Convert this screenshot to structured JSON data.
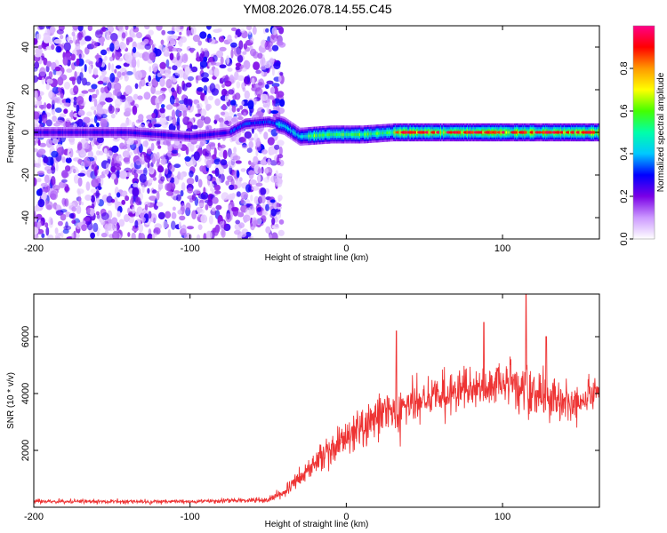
{
  "title": "YM08.2026.078.14.55.C45",
  "chart_data": [
    {
      "type": "heatmap",
      "xlabel": "Height of straight line (km)",
      "ylabel": "Frequency (Hz)",
      "xlim": [
        -200,
        162
      ],
      "ylim": [
        -50,
        50
      ],
      "xticks": [
        -200,
        -100,
        0,
        100
      ],
      "yticks": [
        -40,
        -20,
        0,
        20,
        40
      ],
      "colorbar": {
        "label": "Normalized spectral amplitude",
        "range": [
          0,
          1
        ],
        "ticks": [
          "0.0",
          "0.2",
          "0.4",
          "0.6",
          "0.8"
        ],
        "colors": [
          "#ffffff",
          "#cc99ff",
          "#7a00e6",
          "#0000ff",
          "#00c8ff",
          "#00ffaa",
          "#44ff00",
          "#ffff00",
          "#ff9900",
          "#ff0000",
          "#ff0088"
        ]
      },
      "features": {
        "noise_region_x": [
          -200,
          -45
        ],
        "peak_track": [
          {
            "x": -200,
            "y": 0
          },
          {
            "x": -140,
            "y": 0
          },
          {
            "x": -100,
            "y": -2
          },
          {
            "x": -75,
            "y": 0
          },
          {
            "x": -65,
            "y": 4
          },
          {
            "x": -50,
            "y": 5
          },
          {
            "x": -40,
            "y": 3
          },
          {
            "x": -30,
            "y": -2
          },
          {
            "x": -10,
            "y": -1
          },
          {
            "x": 10,
            "y": -1
          },
          {
            "x": 30,
            "y": 0
          },
          {
            "x": 60,
            "y": 0
          },
          {
            "x": 100,
            "y": 0
          },
          {
            "x": 130,
            "y": 0
          },
          {
            "x": 162,
            "y": 0
          }
        ]
      }
    },
    {
      "type": "line",
      "xlabel": "Height of straight line (km)",
      "ylabel": "SNR (10 * v/v)",
      "xlim": [
        -200,
        162
      ],
      "ylim": [
        0,
        7500
      ],
      "xticks": [
        -200,
        -100,
        0,
        100
      ],
      "yticks": [
        2000,
        4000,
        6000
      ],
      "color": "#ee3333",
      "envelope": [
        {
          "x": -200,
          "mean": 200,
          "spread": 120
        },
        {
          "x": -100,
          "mean": 200,
          "spread": 130
        },
        {
          "x": -50,
          "mean": 250,
          "spread": 150
        },
        {
          "x": -40,
          "mean": 500,
          "spread": 350
        },
        {
          "x": -30,
          "mean": 1000,
          "spread": 600
        },
        {
          "x": -15,
          "mean": 1800,
          "spread": 900
        },
        {
          "x": 0,
          "mean": 2500,
          "spread": 1100
        },
        {
          "x": 15,
          "mean": 3000,
          "spread": 1300
        },
        {
          "x": 30,
          "mean": 3400,
          "spread": 1600
        },
        {
          "x": 50,
          "mean": 3800,
          "spread": 1300
        },
        {
          "x": 70,
          "mean": 4000,
          "spread": 1200
        },
        {
          "x": 90,
          "mean": 4200,
          "spread": 1100
        },
        {
          "x": 100,
          "mean": 4300,
          "spread": 1300
        },
        {
          "x": 115,
          "mean": 4000,
          "spread": 1800
        },
        {
          "x": 130,
          "mean": 3800,
          "spread": 1500
        },
        {
          "x": 145,
          "mean": 3600,
          "spread": 1100
        },
        {
          "x": 162,
          "mean": 4000,
          "spread": 1000
        }
      ],
      "peaks": [
        {
          "x": 32,
          "y": 6200
        },
        {
          "x": 115,
          "y": 7500
        },
        {
          "x": 88,
          "y": 6500
        },
        {
          "x": 128,
          "y": 6000
        }
      ]
    }
  ]
}
